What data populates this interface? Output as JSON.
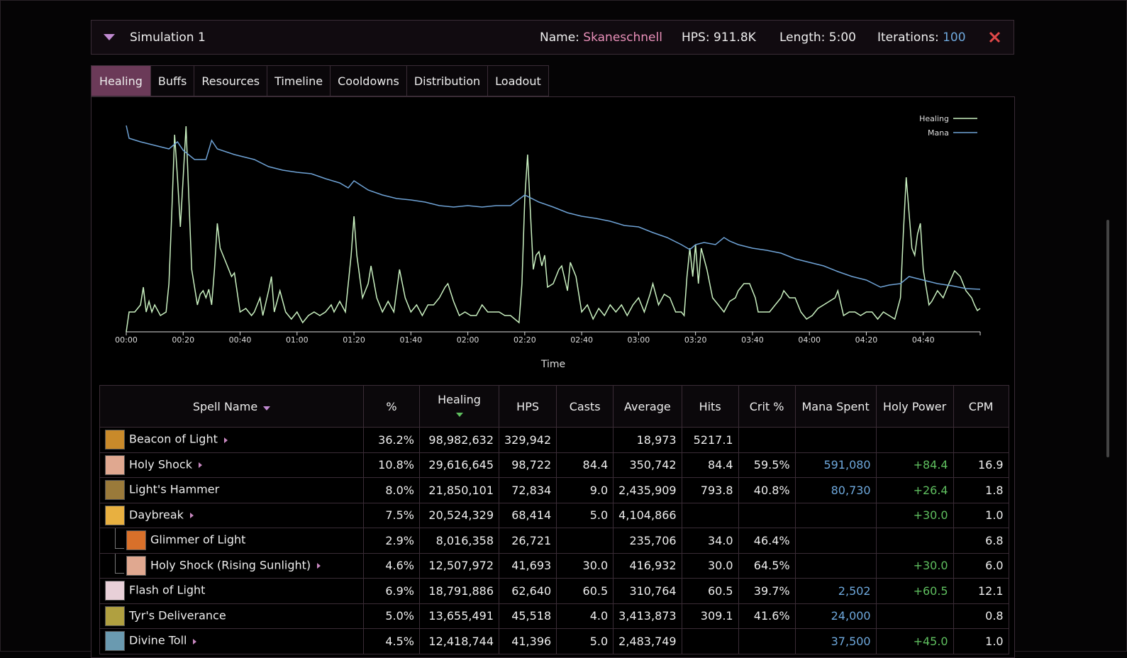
{
  "header": {
    "title": "Simulation 1",
    "name_label": "Name:",
    "name": "Skaneschnell",
    "hps_label": "HPS:",
    "hps": "911.8K",
    "length_label": "Length:",
    "length": "5:00",
    "iterations_label": "Iterations:",
    "iterations": "100"
  },
  "tabs": {
    "items": [
      "Healing",
      "Buffs",
      "Resources",
      "Timeline",
      "Cooldowns",
      "Distribution",
      "Loadout"
    ],
    "active": 0
  },
  "chart_data": {
    "type": "line",
    "x_label": "Time",
    "xlim": [
      0,
      300
    ],
    "ylim": [
      0,
      300
    ],
    "xticks": [
      {
        "value": 0,
        "label": "00:00"
      },
      {
        "value": 20,
        "label": "00:20"
      },
      {
        "value": 40,
        "label": "00:40"
      },
      {
        "value": 60,
        "label": "01:00"
      },
      {
        "value": 80,
        "label": "01:20"
      },
      {
        "value": 100,
        "label": "01:40"
      },
      {
        "value": 120,
        "label": "02:00"
      },
      {
        "value": 140,
        "label": "02:20"
      },
      {
        "value": 160,
        "label": "02:40"
      },
      {
        "value": 180,
        "label": "03:00"
      },
      {
        "value": 200,
        "label": "03:20"
      },
      {
        "value": 220,
        "label": "03:40"
      },
      {
        "value": 240,
        "label": "04:00"
      },
      {
        "value": 260,
        "label": "04:20"
      },
      {
        "value": 280,
        "label": "04:40"
      }
    ],
    "legend": "top-right",
    "series": [
      {
        "name": "Healing",
        "color": "#c9f0c0",
        "x": [
          0,
          1,
          3,
          5,
          6,
          7,
          8,
          9,
          10,
          12,
          14,
          15,
          16,
          17,
          18,
          19,
          20,
          21,
          22,
          23,
          25,
          26,
          27,
          28,
          29,
          30,
          31,
          32,
          33,
          35,
          37,
          38,
          40,
          42,
          44,
          45,
          47,
          48,
          50,
          51,
          52,
          54,
          56,
          58,
          60,
          62,
          64,
          66,
          68,
          70,
          72,
          73,
          75,
          77,
          79,
          80,
          81,
          83,
          85,
          86,
          88,
          90,
          92,
          94,
          96,
          98,
          100,
          102,
          104,
          106,
          108,
          110,
          112,
          113,
          115,
          117,
          119,
          121,
          123,
          125,
          127,
          129,
          131,
          133,
          135,
          138,
          139,
          140,
          141,
          142,
          143,
          144,
          145,
          146,
          147,
          148,
          150,
          152,
          153,
          155,
          156,
          158,
          160,
          162,
          164,
          166,
          168,
          170,
          172,
          174,
          176,
          178,
          180,
          182,
          184,
          185,
          187,
          189,
          191,
          193,
          195,
          196,
          197,
          198,
          199,
          200,
          201,
          202,
          204,
          206,
          208,
          210,
          212,
          214,
          215,
          217,
          219,
          221,
          222,
          224,
          226,
          228,
          230,
          231,
          233,
          235,
          237,
          239,
          241,
          243,
          245,
          247,
          249,
          250,
          252,
          254,
          256,
          258,
          260,
          262,
          264,
          266,
          268,
          270,
          272,
          273,
          274,
          275,
          276,
          277,
          278,
          279,
          280,
          282,
          283,
          285,
          287,
          289,
          291,
          293,
          295,
          297,
          298,
          299,
          300
        ],
        "values": [
          0,
          28,
          28,
          38,
          63,
          28,
          43,
          28,
          38,
          23,
          28,
          68,
          168,
          278,
          218,
          148,
          218,
          290,
          188,
          88,
          38,
          53,
          58,
          48,
          60,
          38,
          88,
          153,
          118,
          98,
          78,
          83,
          28,
          33,
          23,
          28,
          48,
          23,
          58,
          78,
          28,
          58,
          28,
          18,
          28,
          13,
          23,
          28,
          23,
          28,
          38,
          28,
          43,
          28,
          108,
          163,
          108,
          48,
          68,
          93,
          48,
          28,
          43,
          28,
          88,
          48,
          28,
          38,
          23,
          38,
          38,
          48,
          63,
          68,
          43,
          23,
          28,
          23,
          23,
          38,
          28,
          28,
          28,
          23,
          23,
          13,
          68,
          188,
          250,
          168,
          88,
          108,
          113,
          93,
          108,
          63,
          68,
          88,
          93,
          58,
          98,
          78,
          28,
          38,
          18,
          33,
          23,
          38,
          28,
          38,
          23,
          38,
          48,
          28,
          53,
          68,
          38,
          53,
          48,
          28,
          28,
          23,
          78,
          118,
          78,
          123,
          68,
          118,
          88,
          48,
          38,
          28,
          43,
          48,
          58,
          68,
          68,
          48,
          28,
          28,
          28,
          38,
          48,
          58,
          48,
          48,
          28,
          18,
          23,
          33,
          38,
          43,
          48,
          58,
          23,
          28,
          28,
          23,
          28,
          28,
          18,
          28,
          23,
          18,
          48,
          138,
          218,
          168,
          118,
          108,
          138,
          153,
          88,
          38,
          43,
          58,
          48,
          68,
          86,
          78,
          58,
          48,
          38,
          30,
          33
        ]
      },
      {
        "name": "Mana",
        "color": "#6fa3d6",
        "x": [
          0,
          1,
          5,
          10,
          15,
          18,
          20,
          24,
          28,
          30,
          32,
          38,
          45,
          50,
          55,
          60,
          65,
          70,
          75,
          78,
          80,
          85,
          90,
          95,
          100,
          105,
          110,
          115,
          120,
          125,
          130,
          135,
          140,
          145,
          150,
          155,
          160,
          165,
          170,
          175,
          180,
          185,
          190,
          195,
          198,
          200,
          203,
          207,
          210,
          212,
          215,
          220,
          225,
          230,
          235,
          240,
          245,
          250,
          255,
          260,
          265,
          268,
          272,
          275,
          280,
          285,
          290,
          295,
          300
        ],
        "values": [
          291,
          273,
          268,
          263,
          258,
          268,
          256,
          243,
          243,
          270,
          258,
          250,
          243,
          233,
          228,
          225,
          223,
          216,
          210,
          203,
          213,
          200,
          193,
          188,
          186,
          183,
          178,
          176,
          178,
          176,
          178,
          178,
          193,
          183,
          176,
          168,
          163,
          160,
          156,
          150,
          148,
          140,
          133,
          123,
          116,
          123,
          126,
          123,
          133,
          128,
          123,
          118,
          115,
          111,
          103,
          98,
          93,
          85,
          78,
          73,
          63,
          66,
          68,
          78,
          73,
          68,
          65,
          61,
          60
        ]
      }
    ]
  },
  "table": {
    "columns": [
      "Spell Name",
      "%",
      "Healing",
      "HPS",
      "Casts",
      "Average",
      "Hits",
      "Crit %",
      "Mana Spent",
      "Holy Power",
      "CPM"
    ],
    "rows": [
      {
        "level": 0,
        "expandable": true,
        "icon": "#c98a2a",
        "cells": [
          "Beacon of Light",
          "36.2%",
          "98,982,632",
          "329,942",
          null,
          "18,973",
          "5217.1",
          null,
          null,
          null,
          null
        ]
      },
      {
        "level": 0,
        "expandable": true,
        "icon": "#e0a890",
        "cells": [
          "Holy Shock",
          "10.8%",
          "29,616,645",
          "98,722",
          "84.4",
          "350,742",
          "84.4",
          "59.5%",
          "591,080",
          "+84.4",
          "16.9"
        ]
      },
      {
        "level": 0,
        "expandable": false,
        "icon": "#9a7a3a",
        "cells": [
          "Light's Hammer",
          "8.0%",
          "21,850,101",
          "72,834",
          "9.0",
          "2,435,909",
          "793.8",
          "40.8%",
          "80,730",
          "+26.4",
          "1.8"
        ]
      },
      {
        "level": 0,
        "expandable": true,
        "icon": "#e8b040",
        "cells": [
          "Daybreak",
          "7.5%",
          "20,524,329",
          "68,414",
          "5.0",
          "4,104,866",
          null,
          null,
          null,
          "+30.0",
          "1.0"
        ]
      },
      {
        "level": 1,
        "expandable": false,
        "icon": "#d8702a",
        "cells": [
          "Glimmer of Light",
          "2.9%",
          "8,016,358",
          "26,721",
          null,
          "235,706",
          "34.0",
          "46.4%",
          null,
          null,
          "6.8"
        ]
      },
      {
        "level": 1,
        "expandable": true,
        "icon": "#e0a890",
        "cells": [
          "Holy Shock (Rising Sunlight)",
          "4.6%",
          "12,507,972",
          "41,693",
          "30.0",
          "416,932",
          "30.0",
          "64.5%",
          null,
          "+30.0",
          "6.0"
        ]
      },
      {
        "level": 0,
        "expandable": false,
        "icon": "#e8d0d8",
        "cells": [
          "Flash of Light",
          "6.9%",
          "18,791,886",
          "62,640",
          "60.5",
          "310,764",
          "60.5",
          "39.7%",
          "2,502",
          "+60.5",
          "12.1"
        ]
      },
      {
        "level": 0,
        "expandable": false,
        "icon": "#b0a040",
        "cells": [
          "Tyr's Deliverance",
          "5.0%",
          "13,655,491",
          "45,518",
          "4.0",
          "3,413,873",
          "309.1",
          "41.6%",
          "24,000",
          null,
          "0.8"
        ]
      },
      {
        "level": 0,
        "expandable": true,
        "icon": "#6a9ab0",
        "cells": [
          "Divine Toll",
          "4.5%",
          "12,418,744",
          "41,396",
          "5.0",
          "2,483,749",
          null,
          null,
          "37,500",
          "+45.0",
          "1.0"
        ]
      }
    ]
  }
}
